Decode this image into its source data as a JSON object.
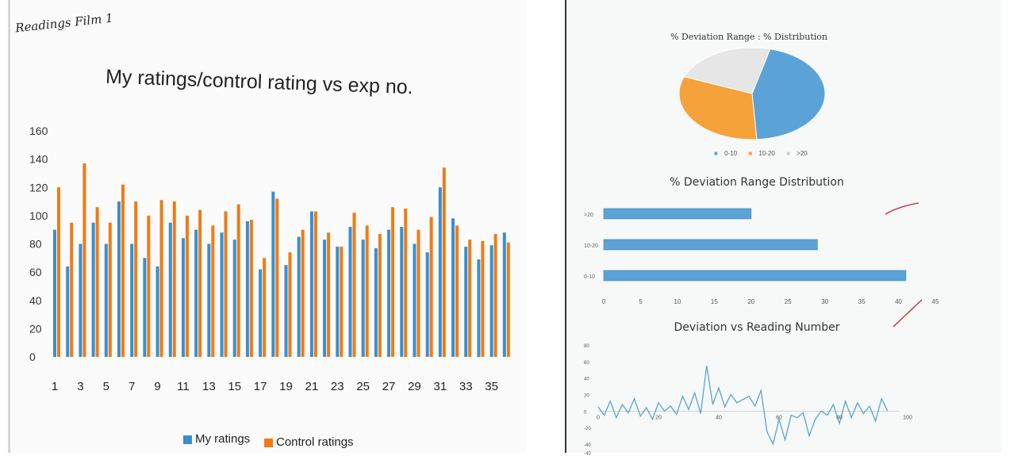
{
  "left_page": {
    "handwritten_title": "Readings Film 1"
  },
  "chart_data": [
    {
      "type": "bar",
      "title": "My ratings/control rating vs exp no.",
      "ylim": [
        0,
        160
      ],
      "yticks": [
        "160",
        "140",
        "120",
        "100",
        "80",
        "60",
        "40",
        "20",
        "0"
      ],
      "categories": [
        "1",
        "2",
        "3",
        "4",
        "5",
        "6",
        "7",
        "8",
        "9",
        "10",
        "11",
        "12",
        "13",
        "14",
        "15",
        "16",
        "17",
        "18",
        "19",
        "20",
        "21",
        "22",
        "23",
        "24",
        "25",
        "26",
        "27",
        "28",
        "29",
        "30",
        "31",
        "32",
        "33",
        "34",
        "35",
        "36"
      ],
      "xtick_labels": [
        "1",
        "3",
        "5",
        "7",
        "9",
        "11",
        "13",
        "15",
        "17",
        "19",
        "21",
        "23",
        "25",
        "27",
        "29",
        "31",
        "33",
        "35"
      ],
      "series": [
        {
          "name": "My ratings",
          "color": "#3a8fd0",
          "values": [
            90,
            64,
            80,
            95,
            80,
            110,
            80,
            70,
            64,
            95,
            84,
            90,
            80,
            88,
            83,
            96,
            62,
            117,
            65,
            85,
            103,
            83,
            78,
            92,
            83,
            77,
            90,
            92,
            80,
            74,
            120,
            98,
            78,
            69,
            79,
            88
          ]
        },
        {
          "name": "Control ratings",
          "color": "#f07b14",
          "values": [
            120,
            95,
            137,
            106,
            95,
            122,
            110,
            100,
            111,
            110,
            100,
            104,
            93,
            103,
            108,
            97,
            70,
            112,
            74,
            90,
            103,
            88,
            78,
            102,
            93,
            87,
            106,
            105,
            90,
            99,
            134,
            93,
            83,
            82,
            87,
            81
          ]
        }
      ],
      "legend_position": "bottom"
    },
    {
      "type": "pie",
      "title": "% Deviation Range : % Distribution",
      "categories": [
        "0-10",
        "10-20",
        ">20"
      ],
      "values": [
        45,
        32,
        23
      ],
      "colors": [
        "#5ba3d6",
        "#f5a23a",
        "#e6e6e6"
      ],
      "legend_position": "bottom"
    },
    {
      "type": "bar",
      "orientation": "horizontal",
      "title": "% Deviation Range Distribution",
      "categories": [
        ">20",
        "10-20",
        "0-10"
      ],
      "values": [
        20,
        29,
        41
      ],
      "color": "#5ba3d6",
      "xlim": [
        0,
        45
      ],
      "xticks": [
        "0",
        "5",
        "10",
        "15",
        "20",
        "25",
        "30",
        "35",
        "40",
        "45"
      ]
    },
    {
      "type": "line",
      "title": "Deviation vs Reading Number",
      "xlim": [
        0,
        100
      ],
      "ylim": [
        -40,
        80
      ],
      "xtick_labels": [
        "0",
        "20",
        "40",
        "60",
        "80",
        "100"
      ],
      "ytick_labels": [
        "80",
        "60",
        "40",
        "20",
        "0",
        "-20",
        "-40",
        "-40"
      ],
      "color": "#5ba3d6",
      "x": [
        0,
        2,
        4,
        6,
        8,
        10,
        12,
        14,
        16,
        18,
        20,
        22,
        24,
        26,
        28,
        30,
        32,
        34,
        36,
        38,
        40,
        42,
        44,
        46,
        48,
        50,
        52,
        54,
        56,
        58,
        60,
        62,
        64,
        66,
        68,
        70,
        72,
        74,
        76,
        78,
        80,
        82,
        84,
        86,
        88,
        90,
        92,
        94,
        96
      ],
      "y": [
        5,
        -5,
        12,
        -8,
        8,
        -2,
        15,
        -6,
        4,
        -10,
        10,
        0,
        6,
        -4,
        18,
        2,
        22,
        -3,
        55,
        8,
        28,
        5,
        20,
        10,
        14,
        18,
        6,
        25,
        -25,
        -40,
        -10,
        -35,
        -5,
        -8,
        -2,
        -30,
        -10,
        0,
        -5,
        8,
        -15,
        12,
        -8,
        10,
        -3,
        6,
        -12,
        15,
        0
      ]
    }
  ]
}
